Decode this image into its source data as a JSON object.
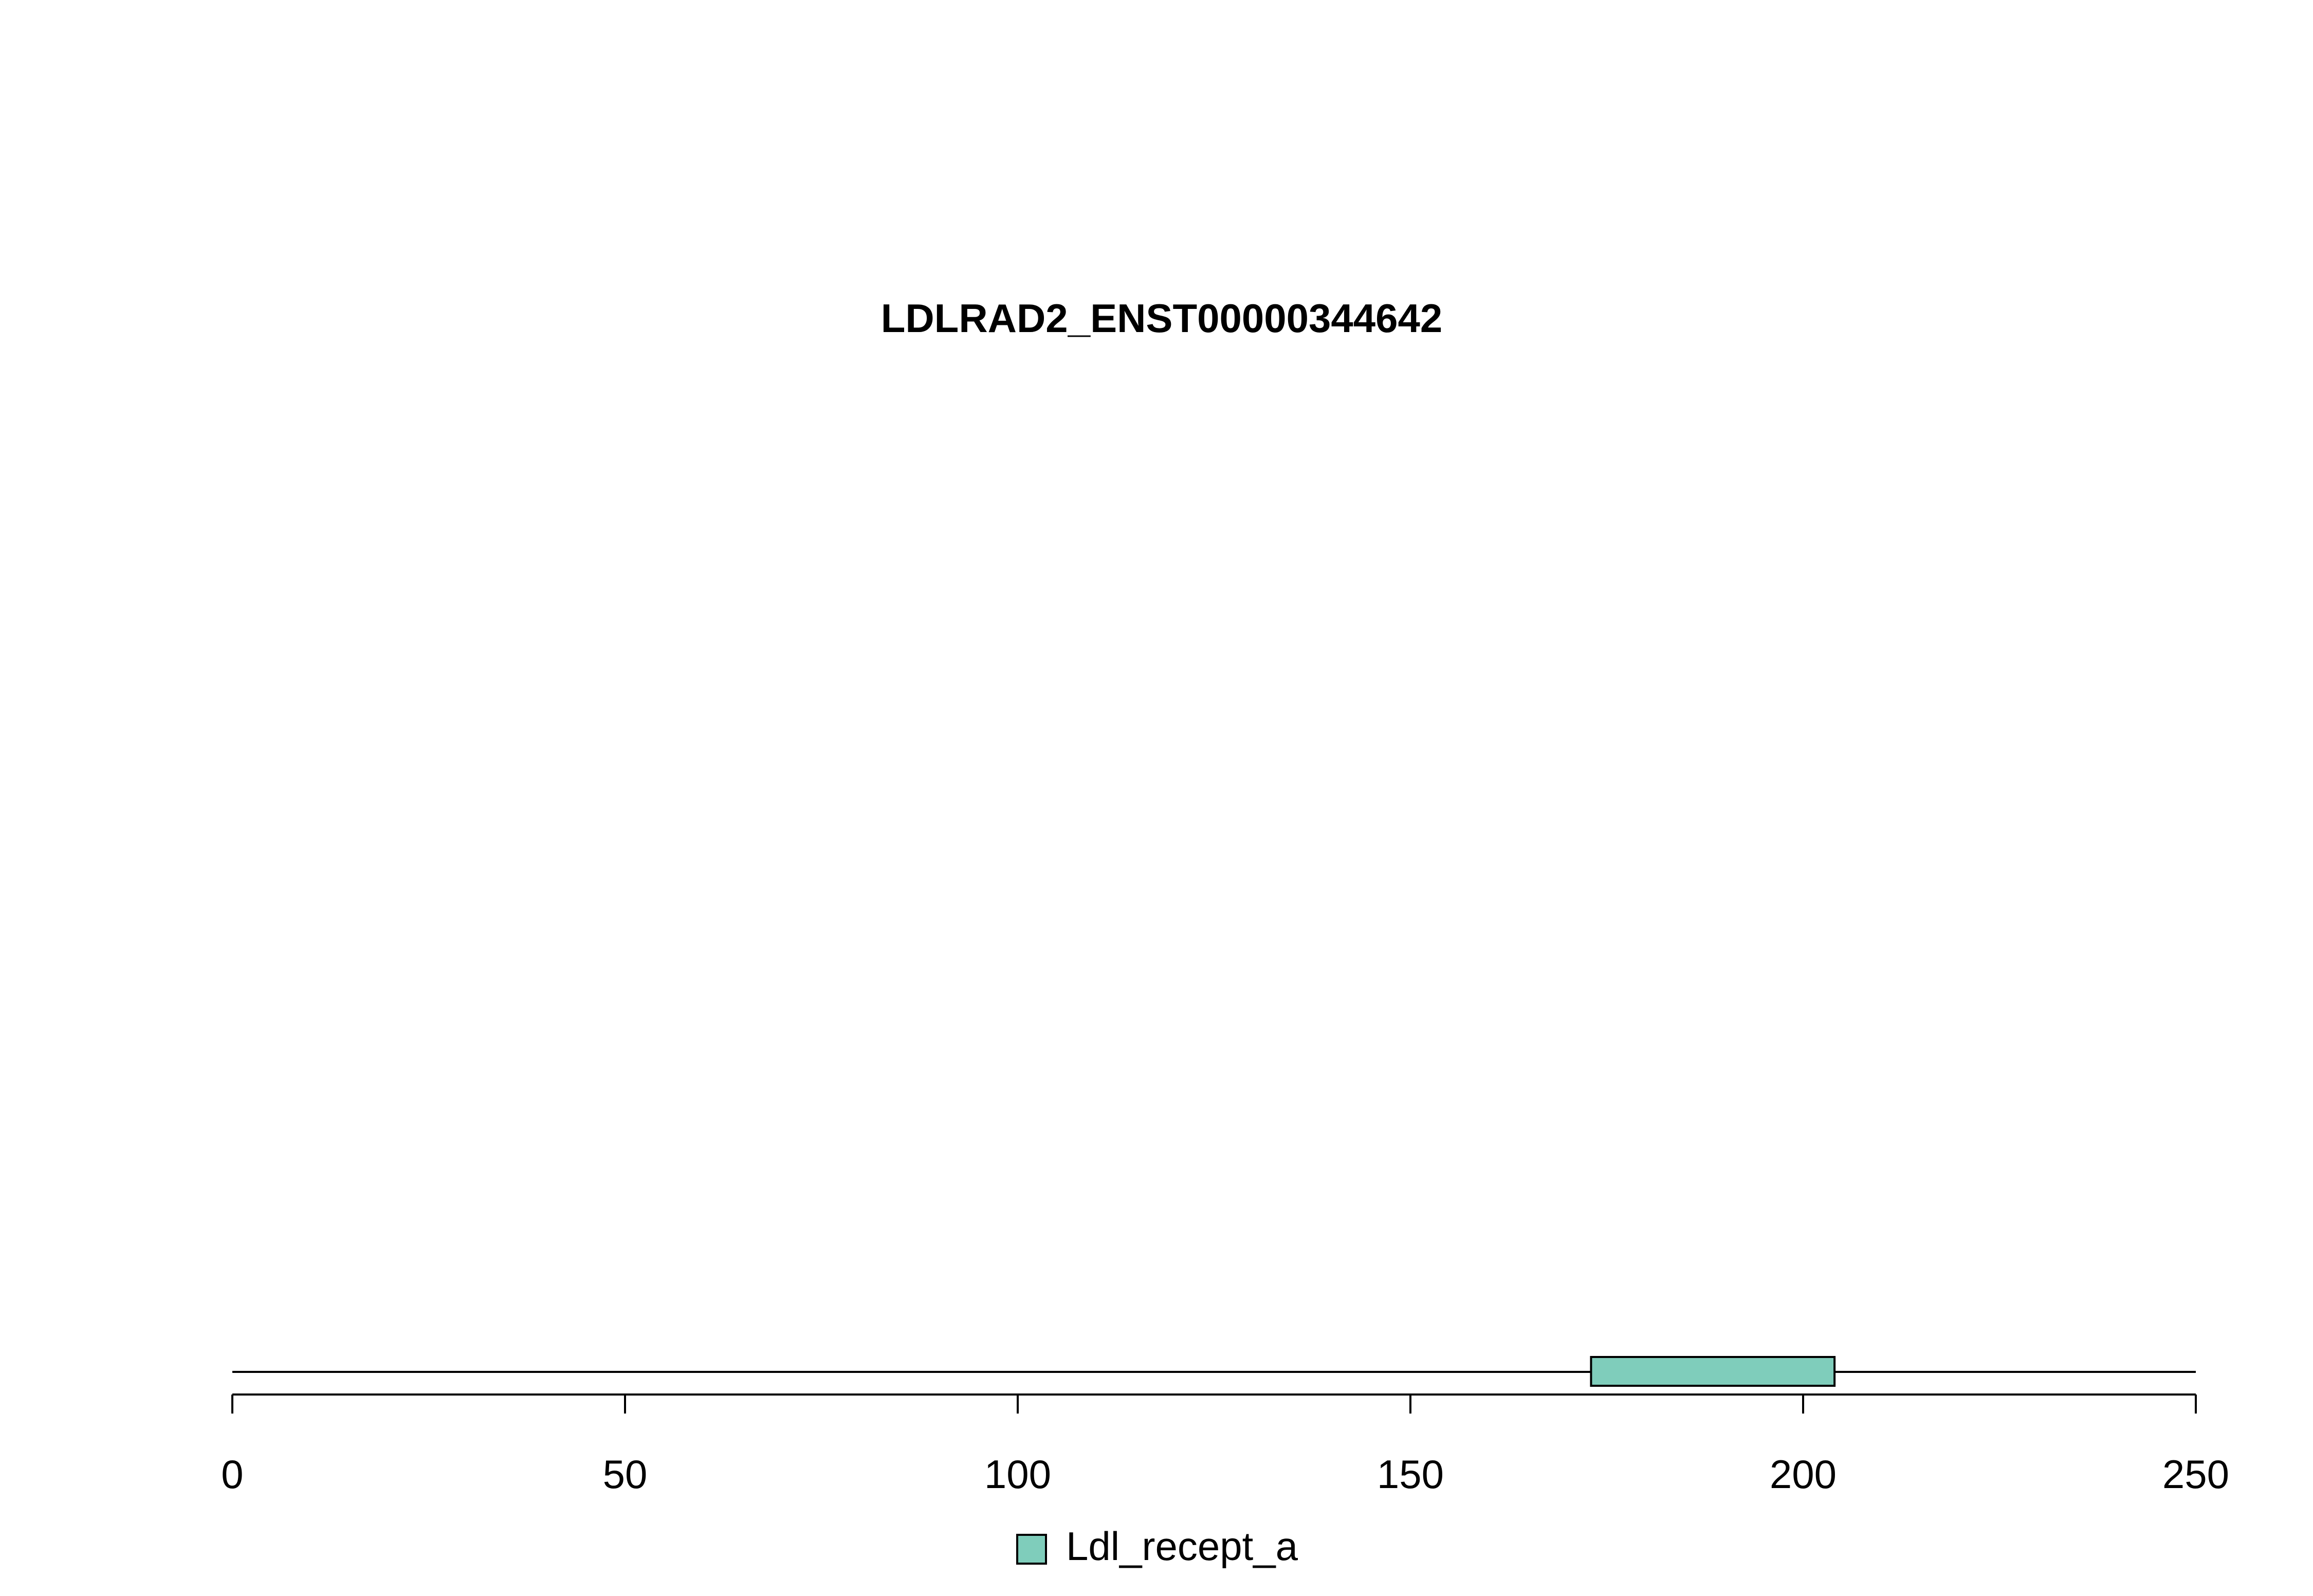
{
  "chart_data": {
    "type": "protein-domain",
    "title": "LDLRAD2_ENST00000344642",
    "xlim": [
      0,
      250
    ],
    "ticks": [
      0,
      50,
      100,
      150,
      200,
      250
    ],
    "protein_length": 250,
    "domains": [
      {
        "name": "Ldl_recept_a",
        "start": 173,
        "end": 204,
        "color": "#7fcdbb"
      }
    ],
    "legend": [
      {
        "label": "Ldl_recept_a",
        "color": "#7fcdbb"
      }
    ],
    "legend_position": "bottom-center",
    "grid": false
  },
  "colors": {
    "background": "#ffffff",
    "axis": "#000000",
    "text": "#000000",
    "backbone": "#000000"
  }
}
